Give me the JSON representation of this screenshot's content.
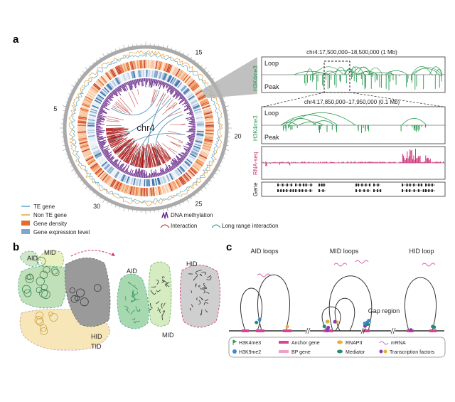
{
  "panel_labels": [
    "a",
    "b",
    "c"
  ],
  "circos": {
    "center_label": "chr4",
    "ticks": [
      "5",
      "15",
      "20",
      "25",
      "30"
    ]
  },
  "tracks": {
    "overview": {
      "title": "chr4:17,500,000–18,500,000 (1 Mb)",
      "ylabel": "H3K4me3",
      "rows": [
        "Loop",
        "Peak"
      ]
    },
    "zoom": {
      "title": "chr4:17,850,000–17,950,000 (0.1 Mb)",
      "ylabel": "H3K4me3",
      "rows": [
        "Loop",
        "Peak"
      ]
    },
    "rna_label": "RNA-seq",
    "gene_label": "Gene"
  },
  "legend_a": [
    "TE gene",
    "Non TE gene",
    "Gene density",
    "Gene expression level",
    "DNA methylation",
    "Interaction",
    "Long range interaction"
  ],
  "panel_b": {
    "left": [
      "AID",
      "MID",
      "HID",
      "TID"
    ],
    "right": [
      "AID",
      "MID",
      "HID"
    ]
  },
  "panel_c": {
    "headers": [
      "AID loops",
      "MID loops",
      "HID loop"
    ],
    "gap": "Gap region",
    "legend": [
      "H3K4me3",
      "H3K9me2",
      "Anchor gene",
      "BP gene",
      "RNAPII",
      "Mediator",
      "mRNA",
      "Transcription factors"
    ]
  }
}
